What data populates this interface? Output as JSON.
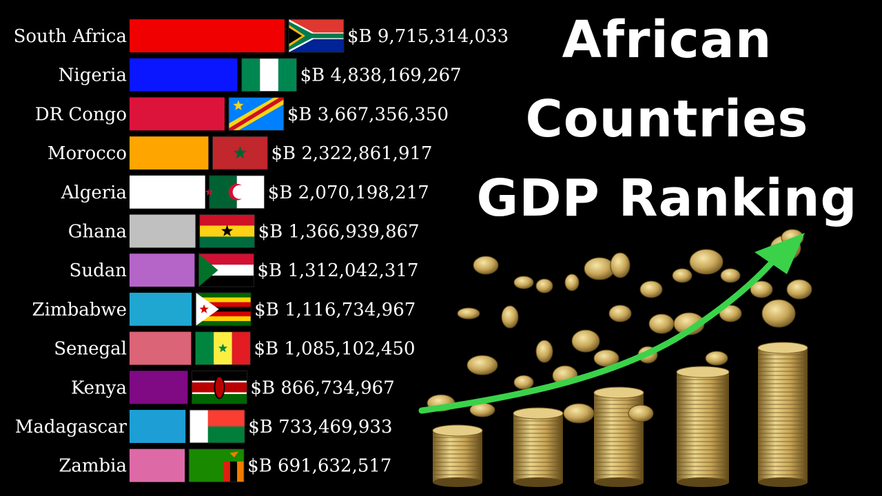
{
  "title_lines": [
    "African",
    "Countries",
    "GDP Ranking"
  ],
  "chart_data": {
    "type": "bar",
    "orientation": "horizontal",
    "value_prefix": "$B ",
    "categories": [
      "South Africa",
      "Nigeria",
      "DR Congo",
      "Morocco",
      "Algeria",
      "Ghana",
      "Sudan",
      "Zimbabwe",
      "Senegal",
      "Kenya",
      "Madagascar",
      "Zambia"
    ],
    "values": [
      9715314033,
      4838169267,
      3667356350,
      2322861917,
      2070198217,
      1366939867,
      1312042317,
      1116734967,
      1085102450,
      866734967,
      733469933,
      691632517
    ],
    "value_labels": [
      "$B 9,715,314,033",
      "$B 4,838,169,267",
      "$B 3,667,356,350",
      "$B 2,322,861,917",
      "$B 2,070,198,217",
      "$B 1,366,939,867",
      "$B 1,312,042,317",
      "$B 1,116,734,967",
      "$B 1,085,102,450",
      "$B 866,734,967",
      "$B 733,469,933",
      "$B 691,632,517"
    ],
    "bar_colors": [
      "#f00000",
      "#0a16ff",
      "#dc143c",
      "#ffa500",
      "#ffffff",
      "#c0c0c0",
      "#b565c8",
      "#1fa7d2",
      "#db6477",
      "#7f0a84",
      "#1d9fd6",
      "#dd6aa7"
    ],
    "flags": [
      "south-africa-flag",
      "nigeria-flag",
      "dr-congo-flag",
      "morocco-flag",
      "algeria-flag",
      "ghana-flag",
      "sudan-flag",
      "zimbabwe-flag",
      "senegal-flag",
      "kenya-flag",
      "madagascar-flag",
      "zambia-flag"
    ],
    "grid": false,
    "legend": "none"
  }
}
